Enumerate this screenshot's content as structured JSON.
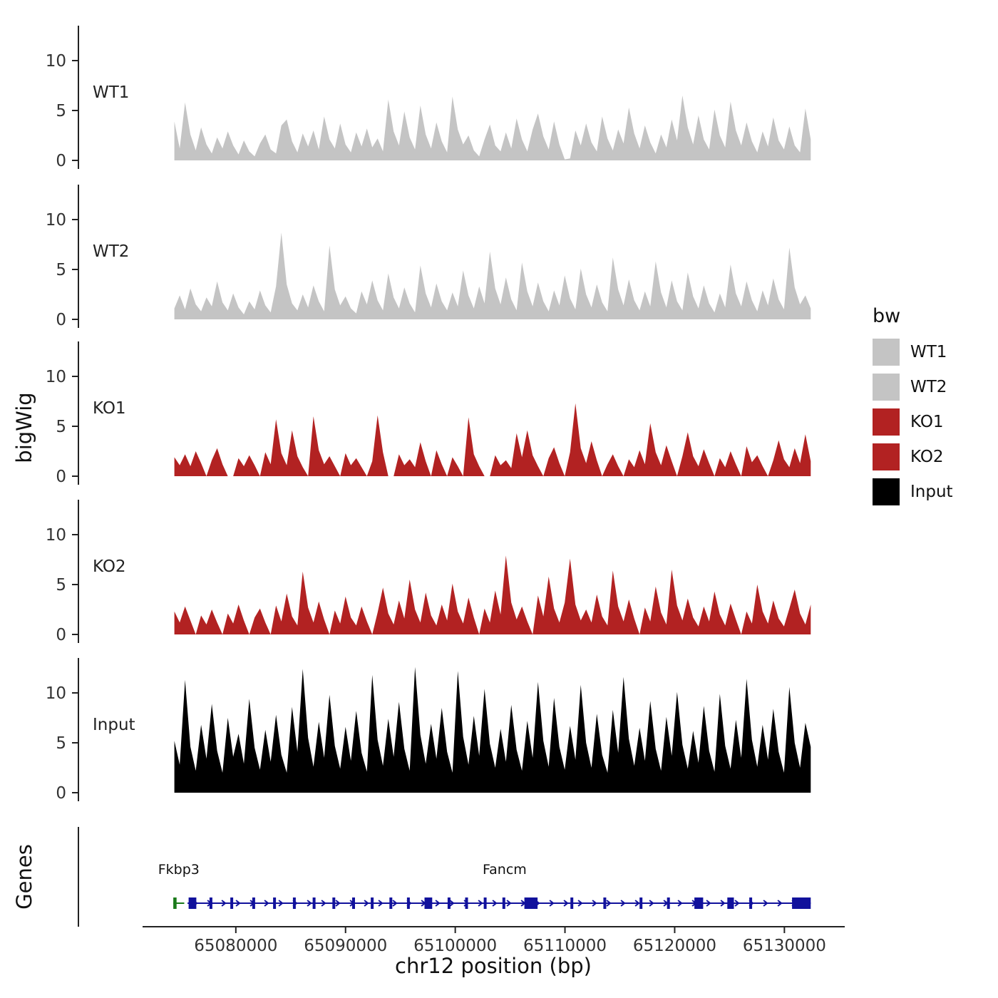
{
  "figure": {
    "y_axis_label": "bigWig",
    "genes_axis_label": "Genes",
    "x_axis_label": "chr12 position (bp)"
  },
  "legend": {
    "title": "bw",
    "items": [
      {
        "label": "WT1",
        "color": "#C4C4C4"
      },
      {
        "label": "WT2",
        "color": "#C4C4C4"
      },
      {
        "label": "KO1",
        "color": "#B22222"
      },
      {
        "label": "KO2",
        "color": "#B22222"
      },
      {
        "label": "Input",
        "color": "#000000"
      }
    ]
  },
  "chart_data": {
    "type": "area",
    "x_domain": [
      65071500,
      65135500
    ],
    "x_ticks": [
      65080000,
      65090000,
      65100000,
      65110000,
      65120000,
      65130000
    ],
    "y_ticks": [
      0,
      5,
      10
    ],
    "y_max": 13.5,
    "signal_x_start": 65074400,
    "signal_x_end": 65132400,
    "tracks": [
      {
        "name": "WT1",
        "color": "#C4C4C4",
        "values": [
          3.9,
          1.2,
          5.8,
          2.6,
          1.0,
          3.3,
          1.6,
          0.7,
          2.3,
          1.2,
          2.9,
          1.5,
          0.6,
          2.0,
          0.9,
          0.4,
          1.7,
          2.6,
          1.1,
          0.7,
          3.5,
          4.1,
          1.9,
          0.8,
          2.7,
          1.4,
          3.0,
          1.1,
          4.4,
          2.1,
          1.2,
          3.7,
          1.6,
          0.8,
          2.8,
          1.4,
          3.2,
          1.3,
          2.2,
          0.9,
          6.1,
          2.9,
          1.5,
          4.9,
          2.3,
          1.1,
          5.5,
          2.6,
          1.2,
          3.8,
          1.9,
          0.8,
          6.4,
          3.1,
          1.6,
          2.5,
          1.0,
          0.4,
          2.1,
          3.6,
          1.5,
          0.9,
          2.8,
          1.2,
          4.2,
          2.1,
          0.9,
          3.1,
          4.7,
          2.4,
          1.1,
          3.9,
          1.6,
          0.1,
          0.2,
          3.0,
          1.5,
          3.7,
          1.8,
          0.9,
          4.4,
          2.2,
          1.0,
          3.1,
          1.7,
          5.3,
          2.7,
          1.2,
          3.5,
          1.8,
          0.7,
          2.6,
          1.3,
          4.1,
          2.0,
          6.5,
          3.3,
          1.6,
          4.5,
          2.1,
          1.1,
          5.1,
          2.5,
          1.3,
          5.9,
          3.0,
          1.5,
          3.8,
          1.9,
          0.8,
          2.9,
          1.4,
          4.3,
          2.0,
          1.1,
          3.4,
          1.5,
          0.8,
          5.2,
          2.1
        ]
      },
      {
        "name": "WT2",
        "color": "#C4C4C4",
        "values": [
          1.1,
          2.4,
          1.0,
          3.1,
          1.5,
          0.8,
          2.2,
          1.3,
          3.8,
          1.7,
          0.9,
          2.6,
          1.2,
          0.5,
          1.8,
          1.0,
          2.9,
          1.4,
          0.7,
          3.3,
          8.7,
          3.5,
          1.6,
          0.9,
          2.5,
          1.2,
          3.4,
          1.8,
          0.8,
          7.4,
          3.0,
          1.4,
          2.3,
          1.1,
          0.6,
          2.8,
          1.5,
          3.9,
          1.9,
          0.9,
          4.6,
          2.2,
          1.1,
          3.2,
          1.6,
          0.7,
          5.4,
          2.6,
          1.2,
          3.6,
          1.8,
          0.9,
          2.7,
          1.3,
          4.9,
          2.4,
          1.1,
          3.3,
          1.6,
          6.8,
          3.1,
          1.5,
          4.2,
          2.0,
          0.9,
          5.7,
          2.8,
          1.3,
          3.7,
          1.8,
          0.8,
          2.9,
          1.4,
          4.4,
          2.1,
          1.0,
          5.1,
          2.5,
          1.2,
          3.5,
          1.7,
          0.8,
          6.2,
          3.0,
          1.4,
          4.0,
          1.9,
          0.9,
          2.8,
          1.3,
          5.8,
          2.7,
          1.2,
          3.9,
          1.8,
          0.9,
          4.7,
          2.3,
          1.1,
          3.4,
          1.6,
          0.7,
          2.6,
          1.2,
          5.5,
          2.6,
          1.3,
          3.8,
          1.9,
          0.8,
          2.9,
          1.4,
          4.1,
          2.0,
          1.0,
          7.2,
          3.2,
          1.5,
          2.4,
          1.1
        ]
      },
      {
        "name": "KO1",
        "color": "#B22222",
        "values": [
          1.9,
          1.1,
          2.2,
          1.0,
          2.5,
          1.3,
          0.0,
          1.6,
          2.8,
          1.2,
          0.0,
          0.0,
          1.8,
          1.0,
          2.1,
          1.1,
          0.0,
          2.4,
          1.2,
          5.7,
          2.3,
          1.1,
          4.6,
          2.0,
          0.9,
          0.0,
          6.0,
          2.6,
          1.2,
          2.0,
          1.0,
          0.0,
          2.3,
          1.1,
          1.8,
          0.9,
          0.0,
          1.5,
          6.1,
          2.4,
          0.0,
          0.0,
          2.2,
          1.1,
          1.7,
          0.9,
          3.4,
          1.5,
          0.0,
          2.6,
          1.2,
          0.0,
          1.9,
          1.0,
          0.0,
          5.9,
          2.2,
          1.0,
          0.0,
          0.0,
          2.1,
          1.1,
          1.6,
          0.8,
          4.3,
          1.9,
          4.6,
          2.1,
          1.0,
          0.0,
          1.8,
          2.9,
          1.3,
          0.0,
          2.4,
          7.3,
          2.8,
          1.3,
          3.5,
          1.6,
          0.0,
          1.2,
          2.2,
          1.0,
          0.0,
          1.7,
          0.9,
          2.6,
          1.2,
          5.3,
          2.4,
          1.1,
          3.1,
          1.5,
          0.0,
          2.0,
          4.4,
          2.0,
          1.0,
          2.7,
          1.3,
          0.0,
          1.8,
          0.9,
          2.5,
          1.2,
          0.0,
          3.0,
          1.4,
          2.1,
          1.0,
          0.0,
          1.6,
          3.6,
          1.7,
          0.9,
          2.8,
          1.3,
          4.2,
          1.5
        ]
      },
      {
        "name": "KO2",
        "color": "#B22222",
        "values": [
          2.3,
          1.2,
          2.8,
          1.4,
          0.0,
          1.9,
          1.0,
          2.5,
          1.2,
          0.0,
          2.1,
          1.1,
          3.0,
          1.4,
          0.0,
          1.7,
          2.6,
          1.2,
          0.0,
          2.9,
          1.3,
          4.1,
          1.8,
          0.9,
          6.3,
          2.7,
          1.2,
          3.3,
          1.5,
          0.0,
          2.4,
          1.1,
          3.8,
          1.7,
          0.9,
          2.8,
          1.3,
          0.0,
          2.2,
          4.7,
          2.1,
          1.0,
          3.4,
          1.6,
          5.5,
          2.5,
          1.2,
          4.2,
          1.9,
          0.9,
          3.0,
          1.4,
          5.1,
          2.3,
          1.1,
          3.7,
          1.7,
          0.0,
          2.6,
          1.2,
          4.4,
          2.0,
          7.9,
          3.2,
          1.5,
          2.8,
          1.3,
          0.0,
          3.9,
          1.8,
          5.8,
          2.6,
          1.2,
          3.2,
          7.6,
          3.0,
          1.4,
          2.5,
          1.2,
          4.0,
          1.8,
          0.9,
          6.4,
          2.8,
          1.3,
          3.5,
          1.6,
          0.0,
          2.7,
          1.3,
          4.8,
          2.2,
          1.0,
          6.5,
          2.9,
          1.4,
          3.6,
          1.7,
          0.8,
          2.8,
          1.3,
          4.3,
          2.0,
          0.9,
          3.1,
          1.5,
          0.0,
          2.3,
          1.1,
          5.0,
          2.3,
          1.1,
          3.4,
          1.6,
          0.8,
          2.6,
          4.5,
          2.1,
          1.0,
          3.0
        ]
      },
      {
        "name": "Input",
        "color": "#000000",
        "values": [
          5.2,
          2.8,
          11.3,
          4.6,
          2.2,
          6.8,
          3.4,
          8.9,
          4.2,
          2.0,
          7.5,
          3.6,
          5.9,
          2.9,
          9.4,
          4.5,
          2.3,
          6.3,
          3.1,
          7.8,
          3.8,
          2.0,
          8.6,
          4.1,
          12.4,
          5.5,
          2.6,
          7.1,
          3.5,
          9.8,
          4.7,
          2.4,
          6.6,
          3.2,
          8.2,
          4.0,
          2.1,
          11.8,
          5.3,
          2.7,
          7.4,
          3.6,
          9.1,
          4.4,
          2.2,
          12.6,
          5.8,
          2.9,
          6.9,
          3.4,
          8.5,
          4.1,
          2.0,
          12.2,
          5.6,
          2.8,
          7.7,
          3.7,
          10.4,
          4.9,
          2.5,
          6.4,
          3.1,
          8.8,
          4.3,
          2.2,
          7.2,
          3.5,
          11.1,
          5.2,
          2.6,
          9.5,
          4.6,
          2.3,
          6.7,
          3.3,
          10.8,
          5.0,
          2.5,
          7.9,
          3.8,
          2.0,
          8.3,
          4.0,
          11.6,
          5.4,
          2.7,
          6.5,
          3.2,
          9.2,
          4.4,
          2.2,
          7.6,
          3.7,
          10.1,
          4.8,
          2.4,
          6.2,
          3.0,
          8.7,
          4.2,
          2.1,
          9.9,
          4.7,
          2.4,
          7.3,
          3.5,
          11.4,
          5.3,
          2.6,
          6.8,
          3.3,
          8.4,
          4.1,
          2.0,
          10.6,
          5.0,
          2.5,
          7.0,
          4.6
        ]
      }
    ],
    "genes": [
      {
        "name": "Fkbp3",
        "color": "#1A7A1A",
        "strand": "-",
        "start": 65074300,
        "end": 65075300,
        "label_bp": 65074800,
        "exons": [
          [
            65074300,
            65074600
          ]
        ]
      },
      {
        "name": "Fancm",
        "color": "#11119C",
        "strand": "+",
        "start": 65075600,
        "end": 65132400,
        "label_bp": 65104500,
        "exons": [
          [
            65075700,
            65076400
          ],
          [
            65077600,
            65077800
          ],
          [
            65079500,
            65079700
          ],
          [
            65081500,
            65081700
          ],
          [
            65083400,
            65083600
          ],
          [
            65085200,
            65085400
          ],
          [
            65087000,
            65087200
          ],
          [
            65088800,
            65089000
          ],
          [
            65090600,
            65090850
          ],
          [
            65092300,
            65092500
          ],
          [
            65094000,
            65094200
          ],
          [
            65095600,
            65095800
          ],
          [
            65097200,
            65097900
          ],
          [
            65099300,
            65099500
          ],
          [
            65100900,
            65101100
          ],
          [
            65102600,
            65102800
          ],
          [
            65104300,
            65104500
          ],
          [
            65106300,
            65107500
          ],
          [
            65110500,
            65110750
          ],
          [
            65113500,
            65113700
          ],
          [
            65116800,
            65117000
          ],
          [
            65119300,
            65119500
          ],
          [
            65121800,
            65122600
          ],
          [
            65124800,
            65125400
          ],
          [
            65126800,
            65127000
          ],
          [
            65130700,
            65132400
          ]
        ]
      }
    ]
  }
}
